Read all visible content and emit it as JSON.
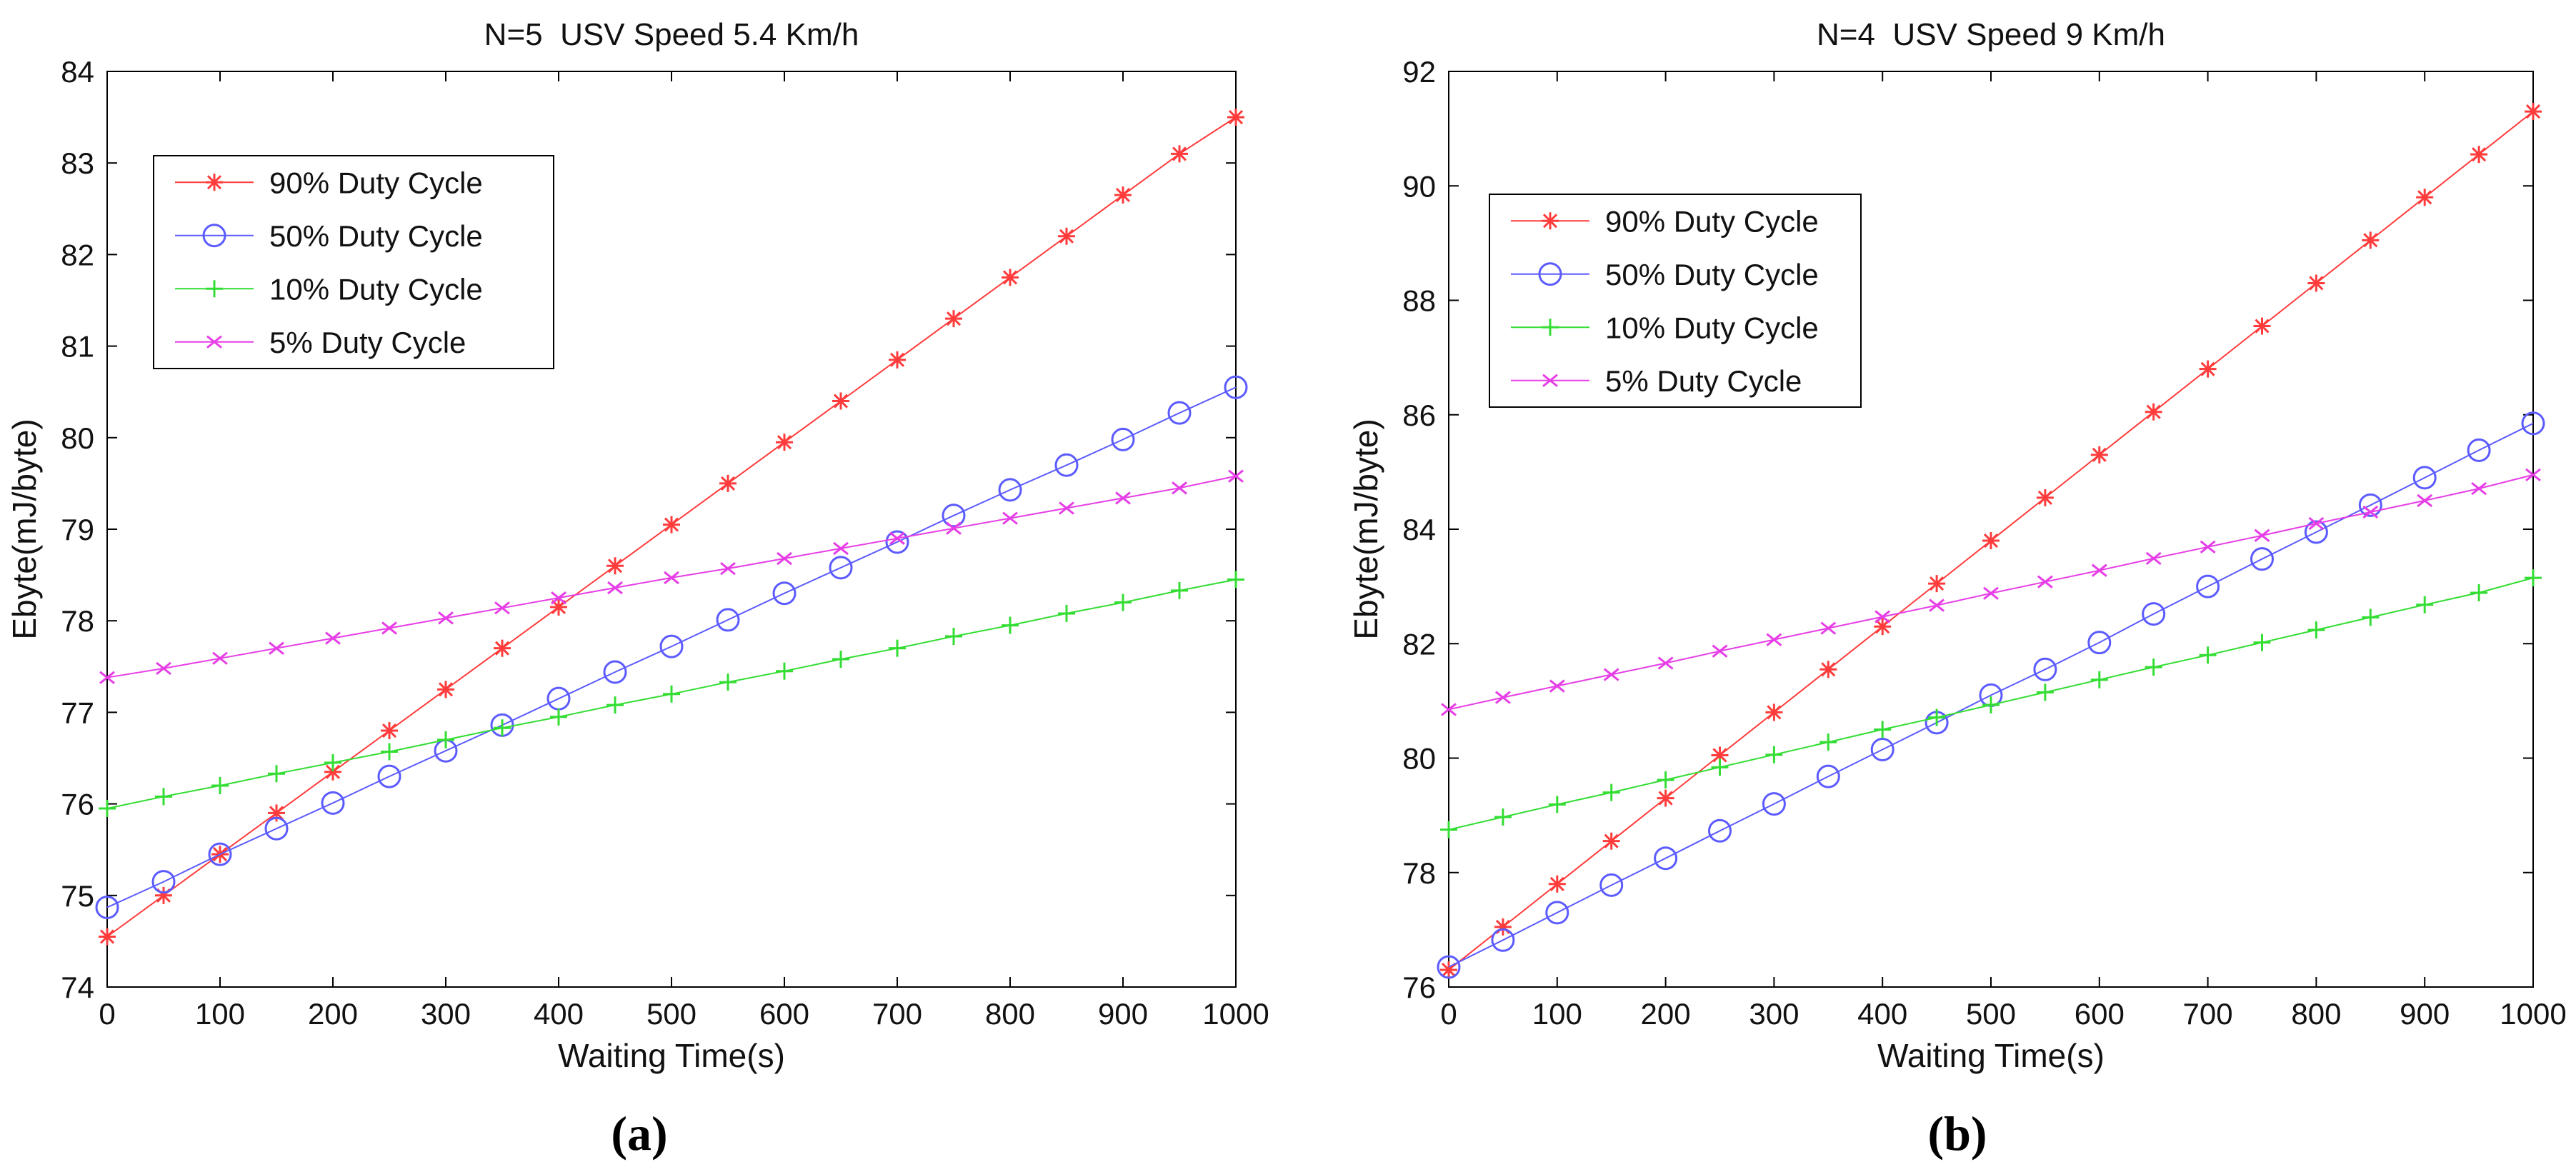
{
  "chart_data": [
    {
      "type": "line",
      "panel_label": "(a)",
      "title": "N=5  USV Speed 5.4 Km/h",
      "xlabel": "Waiting Time(s)",
      "ylabel": "Ebyte(mJ/byte)",
      "xlim": [
        0,
        1000
      ],
      "ylim": [
        74,
        84
      ],
      "xticks": [
        0,
        100,
        200,
        300,
        400,
        500,
        600,
        700,
        800,
        900,
        1000
      ],
      "yticks": [
        74,
        75,
        76,
        77,
        78,
        79,
        80,
        81,
        82,
        83,
        84
      ],
      "legend_position": "top-left",
      "x": [
        0,
        50,
        100,
        150,
        200,
        250,
        300,
        350,
        400,
        450,
        500,
        550,
        600,
        650,
        700,
        750,
        800,
        850,
        900,
        950,
        1000
      ],
      "series": [
        {
          "name": "90% Duty Cycle",
          "color": "#ff3b3b",
          "marker": "asterisk",
          "values": [
            74.55,
            75.0,
            75.45,
            75.9,
            76.35,
            76.8,
            77.25,
            77.7,
            78.15,
            78.6,
            79.05,
            79.5,
            79.95,
            80.4,
            80.85,
            81.3,
            81.75,
            82.2,
            82.65,
            83.1,
            83.5
          ]
        },
        {
          "name": "50% Duty Cycle",
          "color": "#5b5bff",
          "marker": "circle",
          "values": [
            74.87,
            75.15,
            75.45,
            75.73,
            76.01,
            76.3,
            76.58,
            76.86,
            77.15,
            77.44,
            77.72,
            78.01,
            78.3,
            78.58,
            78.86,
            79.15,
            79.43,
            79.7,
            79.98,
            80.27,
            80.55
          ]
        },
        {
          "name": "10% Duty Cycle",
          "color": "#33dd33",
          "marker": "tick",
          "values": [
            75.95,
            76.08,
            76.2,
            76.33,
            76.45,
            76.57,
            76.7,
            76.83,
            76.95,
            77.08,
            77.2,
            77.33,
            77.45,
            77.58,
            77.7,
            77.83,
            77.95,
            78.08,
            78.2,
            78.33,
            78.45
          ]
        },
        {
          "name": "5% Duty Cycle",
          "color": "#e63ee6",
          "marker": "x",
          "values": [
            77.38,
            77.48,
            77.59,
            77.7,
            77.81,
            77.92,
            78.03,
            78.14,
            78.25,
            78.36,
            78.47,
            78.57,
            78.68,
            78.79,
            78.9,
            79.01,
            79.12,
            79.23,
            79.34,
            79.45,
            79.58
          ]
        }
      ]
    },
    {
      "type": "line",
      "panel_label": "(b)",
      "title": "N=4  USV Speed 9 Km/h",
      "xlabel": "Waiting Time(s)",
      "ylabel": "Ebyte(mJ/byte)",
      "xlim": [
        0,
        1000
      ],
      "ylim": [
        76,
        92
      ],
      "xticks": [
        0,
        100,
        200,
        300,
        400,
        500,
        600,
        700,
        800,
        900,
        1000
      ],
      "yticks": [
        76,
        78,
        80,
        82,
        84,
        86,
        88,
        90,
        92
      ],
      "legend_position": "top-left",
      "x": [
        0,
        50,
        100,
        150,
        200,
        250,
        300,
        350,
        400,
        450,
        500,
        550,
        600,
        650,
        700,
        750,
        800,
        850,
        900,
        950,
        1000
      ],
      "series": [
        {
          "name": "90% Duty Cycle",
          "color": "#ff3b3b",
          "marker": "asterisk",
          "values": [
            76.3,
            77.05,
            77.8,
            78.55,
            79.3,
            80.05,
            80.8,
            81.55,
            82.3,
            83.05,
            83.8,
            84.55,
            85.3,
            86.05,
            86.8,
            87.55,
            88.3,
            89.05,
            89.8,
            90.55,
            91.3
          ]
        },
        {
          "name": "50% Duty Cycle",
          "color": "#5b5bff",
          "marker": "circle",
          "values": [
            76.35,
            76.82,
            77.3,
            77.78,
            78.25,
            78.73,
            79.2,
            79.68,
            80.15,
            80.62,
            81.1,
            81.55,
            82.02,
            82.52,
            83.0,
            83.48,
            83.95,
            84.42,
            84.9,
            85.38,
            85.85
          ]
        },
        {
          "name": "10% Duty Cycle",
          "color": "#33dd33",
          "marker": "tick",
          "values": [
            78.75,
            78.97,
            79.19,
            79.4,
            79.62,
            79.84,
            80.06,
            80.28,
            80.5,
            80.71,
            80.93,
            81.15,
            81.37,
            81.59,
            81.8,
            82.02,
            82.24,
            82.46,
            82.68,
            82.89,
            83.15
          ]
        },
        {
          "name": "5% Duty Cycle",
          "color": "#e63ee6",
          "marker": "x",
          "values": [
            80.85,
            81.06,
            81.26,
            81.46,
            81.66,
            81.87,
            82.07,
            82.27,
            82.47,
            82.67,
            82.88,
            83.08,
            83.28,
            83.49,
            83.69,
            83.89,
            84.1,
            84.3,
            84.5,
            84.71,
            84.95
          ]
        }
      ]
    }
  ]
}
